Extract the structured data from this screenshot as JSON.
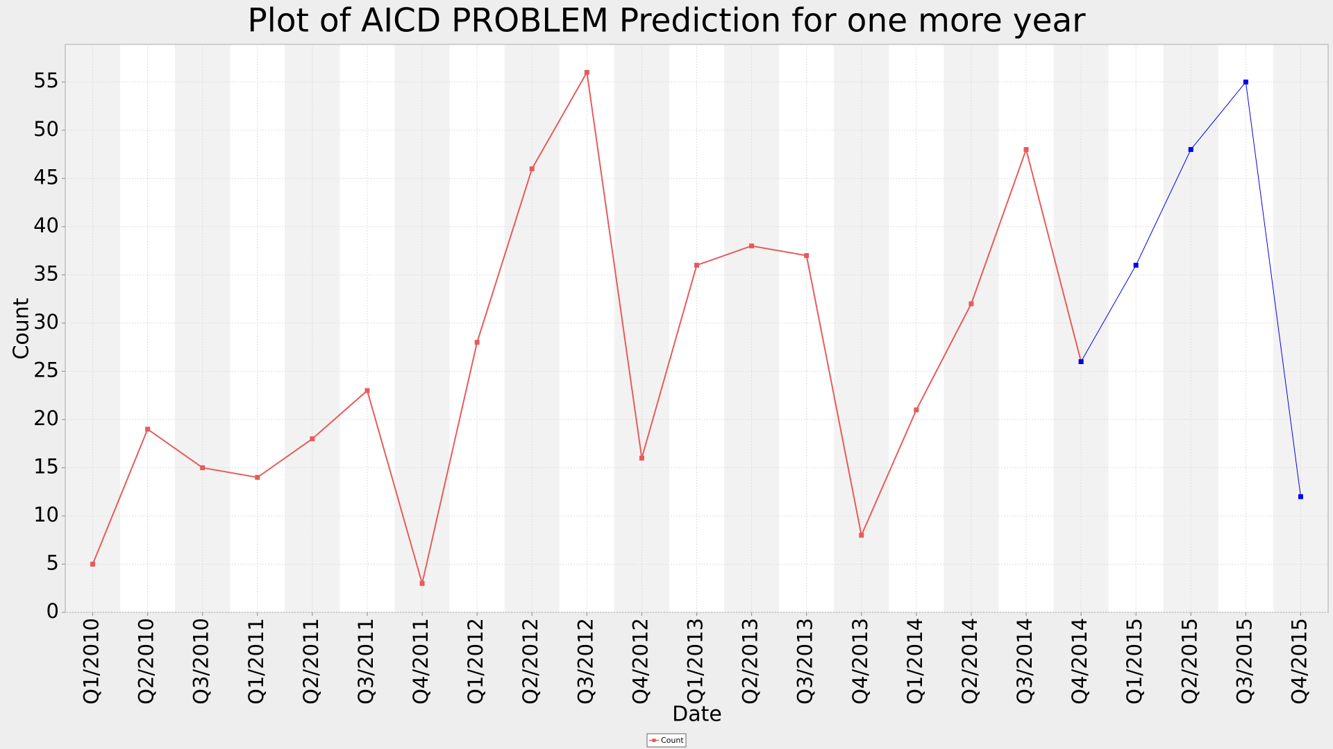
{
  "chart_data": {
    "type": "line",
    "title": "Plot of AICD PROBLEM Prediction for one more year",
    "x_label": "Date",
    "y_label": "Count",
    "categories": [
      "Q1/2010",
      "Q2/2010",
      "Q3/2010",
      "Q1/2011",
      "Q2/2011",
      "Q3/2011",
      "Q4/2011",
      "Q1/2012",
      "Q2/2012",
      "Q3/2012",
      "Q4/2012",
      "Q1/2013",
      "Q2/2013",
      "Q3/2013",
      "Q4/2013",
      "Q1/2014",
      "Q2/2014",
      "Q3/2014",
      "Q4/2014",
      "Q1/2015",
      "Q2/2015",
      "Q3/2015",
      "Q4/2015"
    ],
    "series": [
      {
        "name": "Count",
        "color": "#e85a5a",
        "values": [
          5,
          19,
          15,
          14,
          18,
          23,
          3,
          28,
          46,
          56,
          16,
          36,
          38,
          37,
          8,
          21,
          32,
          48,
          26,
          null,
          null,
          null,
          null
        ]
      },
      {
        "color": "#0000ee",
        "values": [
          null,
          null,
          null,
          null,
          null,
          null,
          null,
          null,
          null,
          null,
          null,
          null,
          null,
          null,
          null,
          null,
          null,
          null,
          26,
          36,
          48,
          55,
          12
        ]
      }
    ],
    "ylim": [
      0,
      58.9
    ],
    "yticks": [
      0,
      5,
      10,
      15,
      20,
      25,
      30,
      35,
      40,
      45,
      50,
      55
    ],
    "grid": true
  }
}
